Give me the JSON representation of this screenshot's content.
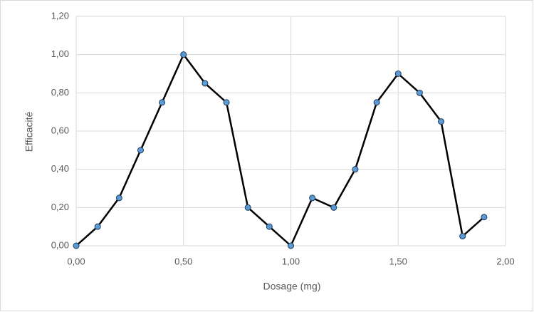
{
  "chart_data": {
    "type": "line",
    "x_label": "Dosage (mg)",
    "y_label": "Efficacité",
    "series": [
      {
        "color": "#000000",
        "marker_color": "#5b9bd5",
        "x": [
          0,
          0.1,
          0.2,
          0.3,
          0.4,
          0.5,
          0.6,
          0.7,
          0.8,
          0.9,
          1.0,
          1.1,
          1.2,
          1.3,
          1.4,
          1.5,
          1.6,
          1.7,
          1.8,
          1.9
        ],
        "values": [
          0,
          0.1,
          0.25,
          0.5,
          0.75,
          1.0,
          0.85,
          0.75,
          0.2,
          0.1,
          0,
          0.25,
          0.2,
          0.4,
          0.75,
          0.9,
          0.8,
          0.65,
          0.05,
          0.15
        ]
      }
    ],
    "xlim": [
      0,
      2
    ],
    "xticks": [
      {
        "value": 0,
        "label": "0,00"
      },
      {
        "value": 0.5,
        "label": "0,50"
      },
      {
        "value": 1,
        "label": "1,00"
      },
      {
        "value": 1.5,
        "label": "1,50"
      },
      {
        "value": 2,
        "label": "2,00"
      }
    ],
    "ylim": [
      0,
      1.2
    ],
    "yticks": [
      {
        "value": 0,
        "label": "0,00"
      },
      {
        "value": 0.2,
        "label": "0,20"
      },
      {
        "value": 0.4,
        "label": "0,40"
      },
      {
        "value": 0.6,
        "label": "0,60"
      },
      {
        "value": 0.8,
        "label": "0,80"
      },
      {
        "value": 1.0,
        "label": "1,00"
      },
      {
        "value": 1.2,
        "label": "1,20"
      }
    ],
    "grid": true
  }
}
